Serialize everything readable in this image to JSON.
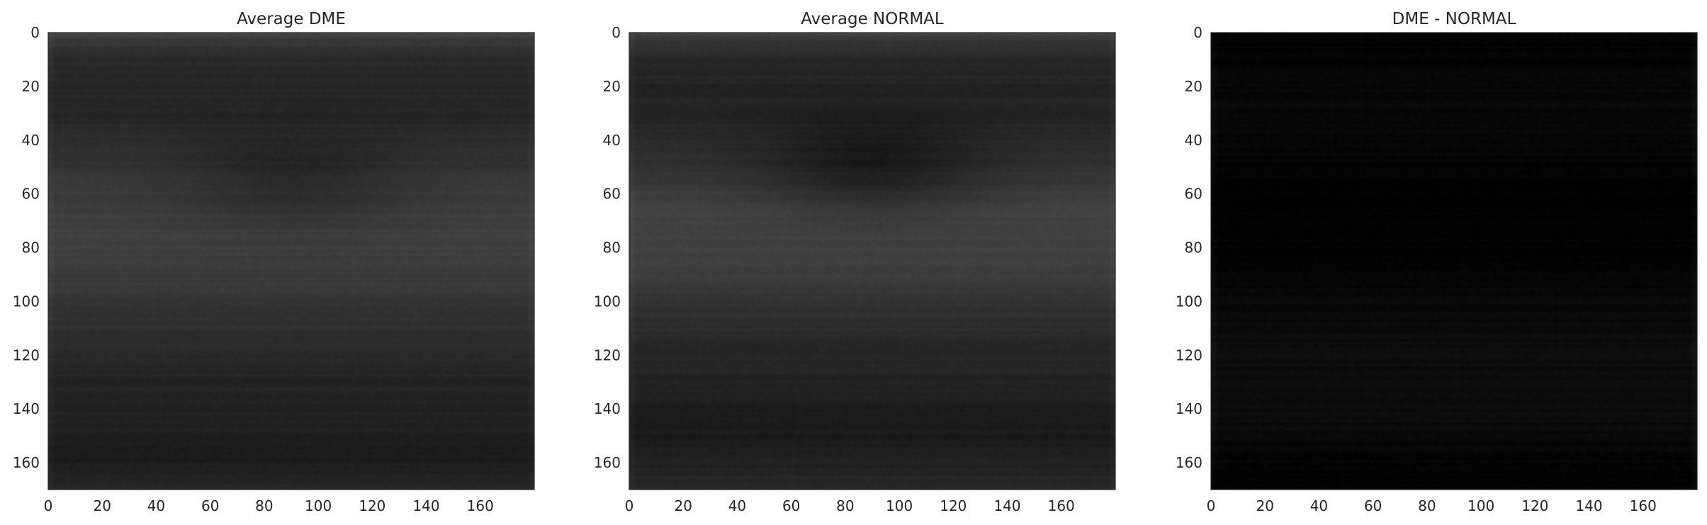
{
  "chart_data": [
    {
      "type": "heatmap",
      "title": "Average DME",
      "colormap": "gray",
      "xlim": [
        0,
        180
      ],
      "ylim": [
        170,
        0
      ],
      "x_ticks": [
        "0",
        "20",
        "40",
        "60",
        "80",
        "100",
        "120",
        "140",
        "160"
      ],
      "y_ticks": [
        "0",
        "20",
        "40",
        "60",
        "80",
        "100",
        "120",
        "140",
        "160"
      ],
      "profile": {
        "rows": [
          0,
          3,
          8,
          20,
          30,
          45,
          60,
          75,
          85,
          100,
          115,
          130,
          148,
          155,
          165,
          170
        ],
        "values": [
          0.26,
          0.22,
          0.17,
          0.15,
          0.15,
          0.19,
          0.23,
          0.25,
          0.24,
          0.21,
          0.17,
          0.14,
          0.12,
          0.1,
          0.13,
          0.15
        ]
      },
      "center_dip": {
        "x": 90,
        "y": 55,
        "depth": 0.06
      }
    },
    {
      "type": "heatmap",
      "title": "Average NORMAL",
      "colormap": "gray",
      "xlim": [
        0,
        180
      ],
      "ylim": [
        170,
        0
      ],
      "x_ticks": [
        "0",
        "20",
        "40",
        "60",
        "80",
        "100",
        "120",
        "140",
        "160"
      ],
      "y_ticks": [
        "0",
        "20",
        "40",
        "60",
        "80",
        "100",
        "120",
        "140",
        "160"
      ],
      "profile": {
        "rows": [
          0,
          3,
          8,
          20,
          30,
          45,
          60,
          70,
          85,
          100,
          115,
          130,
          145,
          150,
          163,
          170
        ],
        "values": [
          0.25,
          0.21,
          0.16,
          0.14,
          0.14,
          0.18,
          0.24,
          0.26,
          0.25,
          0.2,
          0.16,
          0.13,
          0.11,
          0.1,
          0.14,
          0.16
        ]
      },
      "center_dip": {
        "x": 90,
        "y": 50,
        "depth": 0.09
      }
    },
    {
      "type": "heatmap",
      "title": "DME - NORMAL",
      "colormap": "gray",
      "xlim": [
        0,
        180
      ],
      "ylim": [
        170,
        0
      ],
      "x_ticks": [
        "0",
        "20",
        "40",
        "60",
        "80",
        "100",
        "120",
        "140",
        "160"
      ],
      "y_ticks": [
        "0",
        "20",
        "40",
        "60",
        "80",
        "100",
        "120",
        "140",
        "160"
      ],
      "profile": {
        "rows": [
          0,
          10,
          30,
          60,
          85,
          100,
          120,
          145,
          170
        ],
        "values": [
          0.0,
          0.02,
          0.03,
          0.0,
          0.01,
          0.03,
          0.05,
          0.04,
          0.0
        ]
      },
      "center_dip": {
        "x": 90,
        "y": 60,
        "depth": 0.0
      }
    }
  ]
}
